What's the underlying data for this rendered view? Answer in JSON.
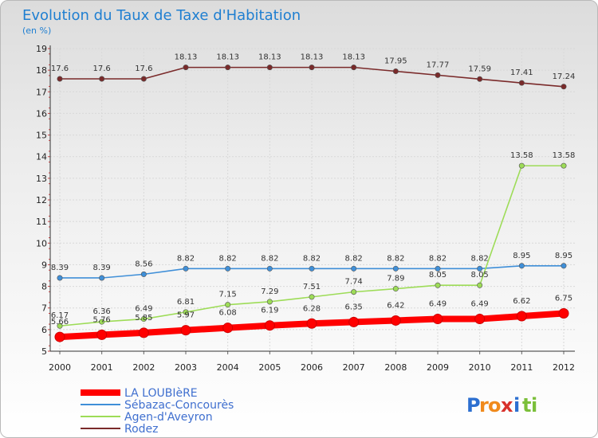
{
  "chart_data": {
    "type": "line",
    "title": "Evolution du Taux de Taxe d'Habitation",
    "subtitle": "(en %)",
    "x": [
      "2000",
      "2001",
      "2002",
      "2003",
      "2004",
      "2005",
      "2006",
      "2007",
      "2008",
      "2009",
      "2010",
      "2011",
      "2012"
    ],
    "ylim": [
      5,
      19
    ],
    "yticks": [
      5,
      6,
      7,
      8,
      9,
      10,
      11,
      12,
      13,
      14,
      15,
      16,
      17,
      18,
      19
    ],
    "grid": true,
    "legend_position": "bottom-left",
    "series": [
      {
        "name": "LA LOUBIèRE",
        "color": "#ff0000",
        "values": [
          5.66,
          5.76,
          5.85,
          5.97,
          6.08,
          6.19,
          6.28,
          6.35,
          6.42,
          6.49,
          6.49,
          6.62,
          6.75
        ],
        "labels": [
          "5.66",
          "5.76",
          "5.85",
          "5.97",
          "6.08",
          "6.19",
          "6.28",
          "6.35",
          "6.42",
          "6.49",
          "6.49",
          "6.62",
          "6.75"
        ]
      },
      {
        "name": "Sébazac-Concourès",
        "color": "#3f8fd8",
        "values": [
          8.39,
          8.39,
          8.56,
          8.82,
          8.82,
          8.82,
          8.82,
          8.82,
          8.82,
          8.82,
          8.82,
          8.95,
          8.95
        ],
        "labels": [
          "8.39",
          "8.39",
          "8.56",
          "8.82",
          "8.82",
          "8.82",
          "8.82",
          "8.82",
          "8.82",
          "8.82",
          "8.82",
          "8.95",
          "8.95"
        ]
      },
      {
        "name": "Agen-d'Aveyron",
        "color": "#9ddc57",
        "values": [
          6.17,
          6.36,
          6.49,
          6.81,
          7.15,
          7.29,
          7.51,
          7.74,
          7.89,
          8.05,
          8.05,
          13.58,
          13.58
        ],
        "labels": [
          "6.17",
          "6.36",
          "6.49",
          "6.81",
          "7.15",
          "7.29",
          "7.51",
          "7.74",
          "7.89",
          "8.05",
          "8.05",
          "13.58",
          "13.58"
        ]
      },
      {
        "name": "Rodez",
        "color": "#7a2a2a",
        "values": [
          17.6,
          17.6,
          17.6,
          18.13,
          18.13,
          18.13,
          18.13,
          18.13,
          17.95,
          17.77,
          17.59,
          17.41,
          17.24
        ],
        "labels": [
          "17.6",
          "17.6",
          "17.6",
          "18.13",
          "18.13",
          "18.13",
          "18.13",
          "18.13",
          "17.95",
          "17.77",
          "17.59",
          "17.41",
          "17.24"
        ]
      }
    ]
  },
  "logo": {
    "text": "Proxiti",
    "letters": [
      "P",
      "r",
      "o",
      "x",
      "i",
      "t",
      "i"
    ],
    "colors": [
      "#2c6fd0",
      "#f08a1c",
      "#f08a1c",
      "#d8312b",
      "#2c6fd0",
      "#7bbf3a",
      "#7bbf3a"
    ]
  }
}
